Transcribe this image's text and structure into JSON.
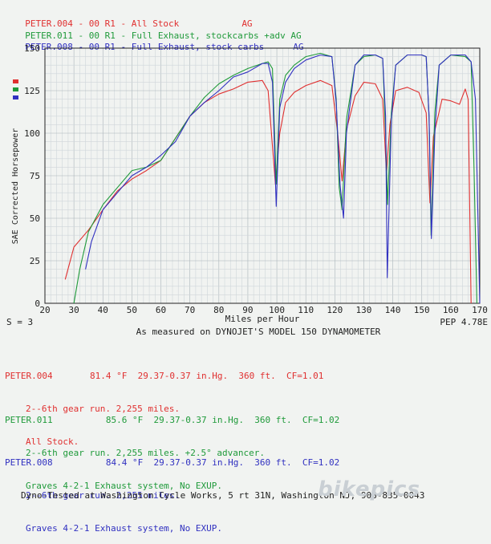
{
  "legend": [
    {
      "text": "PETER.004 - 00 R1 - All Stock",
      "tag": "AG",
      "color": "#e03030"
    },
    {
      "text": "PETER.011 - 00 R1 - Full Exhaust, stockcarbs +adv",
      "tag": "AG",
      "color": "#1f9a3a"
    },
    {
      "text": "PETER.008 - 00 R1 - Full Exhaust, stock carbs",
      "tag": "AG",
      "color": "#3030c0"
    }
  ],
  "footer_left": "S = 3",
  "footer_right": "PEP 4.78E",
  "subtitle": "As measured on DYNOJET'S MODEL 150 DYNAMOMETER",
  "runs": [
    {
      "id": "PETER.004",
      "temp": "81.4 °F",
      "baro": "29.37-0.37 in.Hg.",
      "alt": "360 ft.",
      "cf": "CF=1.01",
      "line2": "2--6th gear run. 2,255 miles.",
      "line3": "All Stock.",
      "color": "#e03030"
    },
    {
      "id": "PETER.011",
      "temp": "85.6 °F",
      "baro": "29.37-0.37 in.Hg.",
      "alt": "360 ft.",
      "cf": "CF=1.02",
      "line2": "2--6th gear run. 2,255 miles. +2.5° advancer.",
      "line3": "Graves 4-2-1 Exhaust system, No EXUP.",
      "color": "#1f9a3a"
    },
    {
      "id": "PETER.008",
      "temp": "84.4 °F",
      "baro": "29.37-0.37 in.Hg.",
      "alt": "360 ft.",
      "cf": "CF=1.02",
      "line2": "2--6th gear run. 2,255 miles.",
      "line3": "Graves 4-2-1 Exhaust system, No EXUP.",
      "color": "#3030c0"
    }
  ],
  "bottom_text": "Dyno-Tested at Washington Cycle Works, 5 rt 31N, Washington NJ, 908-835-0043",
  "watermark": "bikepics",
  "chart_data": {
    "type": "line",
    "xlabel": "Miles per Hour",
    "ylabel": "SAE Corrected Horsepower",
    "xlim": [
      20,
      170
    ],
    "ylim": [
      0,
      150
    ],
    "xticks": [
      20,
      30,
      40,
      50,
      60,
      70,
      80,
      90,
      100,
      110,
      120,
      130,
      140,
      150,
      160,
      170
    ],
    "yticks": [
      0,
      25,
      50,
      75,
      100,
      125,
      150
    ],
    "grid": true,
    "series": [
      {
        "name": "PETER.004",
        "color": "#e03030",
        "x": [
          27,
          30,
          35,
          40,
          45,
          50,
          55,
          60,
          65,
          70,
          75,
          80,
          85,
          90,
          95,
          97,
          99.5,
          101,
          103,
          106,
          110,
          115,
          119,
          121,
          122.5,
          124,
          127,
          130,
          134,
          136.5,
          137.8,
          139,
          141,
          145,
          149,
          151.5,
          152.8,
          154,
          157,
          160,
          163,
          165,
          166,
          167
        ],
        "y": [
          14,
          33,
          43,
          55,
          66,
          73,
          78,
          84,
          97,
          110,
          118,
          123,
          126,
          130,
          131,
          125,
          70,
          100,
          118,
          124,
          128,
          131,
          128,
          100,
          72,
          102,
          122,
          130,
          129,
          120,
          76,
          105,
          125,
          127,
          124,
          112,
          59,
          98,
          120,
          119,
          117,
          126,
          120,
          0
        ]
      },
      {
        "name": "PETER.011",
        "color": "#1f9a3a",
        "x": [
          30,
          32,
          35,
          40,
          45,
          50,
          55,
          60,
          65,
          70,
          75,
          80,
          85,
          90,
          95,
          97,
          98.5,
          99.8,
          101,
          103,
          106,
          110,
          115,
          119,
          120.5,
          121.5,
          122.5,
          124,
          127,
          130,
          134,
          136.5,
          137.5,
          138.2,
          139.5,
          141,
          145,
          150,
          151.5,
          152.5,
          153.2,
          154.5,
          156,
          160,
          165,
          167,
          168,
          169
        ],
        "y": [
          0,
          20,
          42,
          58,
          68,
          78,
          80,
          84,
          97,
          110,
          121,
          129,
          134,
          138,
          141,
          142,
          138,
          70,
          120,
          134,
          140,
          145,
          147,
          145,
          120,
          68,
          55,
          108,
          140,
          145,
          146,
          144,
          100,
          58,
          112,
          140,
          146,
          146,
          145,
          110,
          40,
          112,
          140,
          146,
          145,
          142,
          80,
          0
        ]
      },
      {
        "name": "PETER.008",
        "color": "#3030c0",
        "x": [
          34,
          36,
          40,
          45,
          50,
          55,
          60,
          65,
          70,
          75,
          80,
          85,
          90,
          95,
          97,
          98.5,
          99.8,
          101,
          103,
          106,
          110,
          115,
          119,
          120.5,
          121.8,
          123,
          124,
          127,
          130,
          134,
          136.5,
          137.5,
          138.1,
          139.5,
          141,
          145,
          150,
          151.5,
          152.5,
          153.3,
          154.5,
          156,
          160,
          165,
          167,
          168.5,
          170
        ],
        "y": [
          20,
          36,
          55,
          65,
          75,
          80,
          87,
          95,
          110,
          118,
          125,
          133,
          136,
          141,
          141,
          130,
          57,
          115,
          130,
          138,
          143,
          146,
          145,
          118,
          70,
          50,
          100,
          140,
          146,
          146,
          144,
          110,
          15,
          108,
          140,
          146,
          146,
          145,
          110,
          38,
          100,
          140,
          146,
          146,
          142,
          120,
          0
        ]
      }
    ]
  }
}
